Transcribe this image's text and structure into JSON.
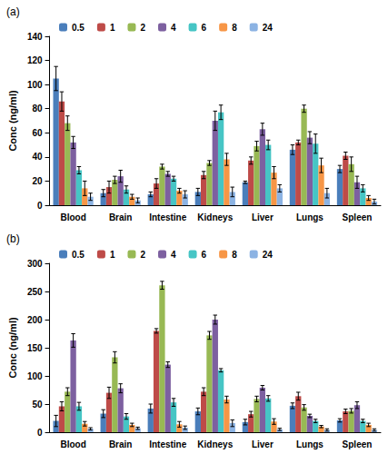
{
  "chart_data": [
    {
      "type": "bar",
      "title": "(a)",
      "y_label": "Conc (ng/ml)",
      "categories": [
        "Blood",
        "Brain",
        "Intestine",
        "Kidneys",
        "Liver",
        "Lungs",
        "Spleen"
      ],
      "ylim": [
        0,
        140
      ],
      "yticks": [
        0,
        20,
        40,
        60,
        80,
        100,
        120,
        140
      ],
      "grid": false,
      "legend": "top",
      "series": [
        {
          "name": "0.5",
          "color": "#4a7ebb",
          "values": [
            105,
            10,
            9,
            11,
            19,
            46,
            30
          ],
          "errors": [
            10,
            3,
            2,
            3,
            1,
            4,
            3
          ]
        },
        {
          "name": "1",
          "color": "#be4b48",
          "values": [
            86,
            15,
            18,
            25,
            37,
            52,
            41
          ],
          "errors": [
            8,
            5,
            4,
            3,
            3,
            2,
            3
          ]
        },
        {
          "name": "2",
          "color": "#98b954",
          "values": [
            68,
            21,
            32,
            35,
            49,
            80,
            34
          ],
          "errors": [
            6,
            3,
            2,
            2,
            4,
            3,
            6
          ]
        },
        {
          "name": "4",
          "color": "#7d60a0",
          "values": [
            52,
            24,
            26,
            70,
            63,
            56,
            19
          ],
          "errors": [
            5,
            5,
            2,
            8,
            5,
            5,
            5
          ]
        },
        {
          "name": "6",
          "color": "#46c5c5",
          "values": [
            29,
            13,
            22,
            77,
            50,
            51,
            14
          ],
          "errors": [
            3,
            3,
            2,
            6,
            4,
            8,
            3
          ]
        },
        {
          "name": "8",
          "color": "#f79646",
          "values": [
            14,
            7,
            12,
            38,
            27,
            33,
            6
          ],
          "errors": [
            6,
            2,
            2,
            5,
            5,
            6,
            2
          ]
        },
        {
          "name": "24",
          "color": "#8cb3e3",
          "values": [
            7,
            4,
            9,
            11,
            14,
            10,
            3
          ],
          "errors": [
            3,
            2,
            3,
            4,
            3,
            4,
            2
          ]
        }
      ]
    },
    {
      "type": "bar",
      "title": "(b)",
      "y_label": "Conc (ng/ml)",
      "categories": [
        "Blood",
        "Brain",
        "Intestine",
        "Kidneys",
        "Liver",
        "Lungs",
        "Spleen"
      ],
      "ylim": [
        0,
        300
      ],
      "yticks": [
        0,
        50,
        100,
        150,
        200,
        250,
        300
      ],
      "grid": false,
      "legend": "top",
      "series": [
        {
          "name": "0.5",
          "color": "#4a7ebb",
          "values": [
            20,
            33,
            42,
            37,
            18,
            47,
            21
          ],
          "errors": [
            10,
            7,
            8,
            6,
            5,
            5,
            3
          ]
        },
        {
          "name": "1",
          "color": "#be4b48",
          "values": [
            46,
            70,
            180,
            72,
            32,
            64,
            37
          ],
          "errors": [
            8,
            10,
            4,
            7,
            5,
            7,
            4
          ]
        },
        {
          "name": "2",
          "color": "#98b954",
          "values": [
            72,
            133,
            261,
            172,
            59,
            44,
            38
          ],
          "errors": [
            7,
            10,
            7,
            7,
            5,
            5,
            4
          ]
        },
        {
          "name": "4",
          "color": "#7d60a0",
          "values": [
            163,
            78,
            120,
            200,
            79,
            29,
            48
          ],
          "errors": [
            12,
            8,
            5,
            8,
            4,
            3,
            6
          ]
        },
        {
          "name": "6",
          "color": "#46c5c5",
          "values": [
            46,
            28,
            53,
            110,
            60,
            20,
            20
          ],
          "errors": [
            7,
            5,
            7,
            3,
            5,
            3,
            3
          ]
        },
        {
          "name": "8",
          "color": "#f79646",
          "values": [
            15,
            13,
            14,
            58,
            19,
            10,
            13
          ],
          "errors": [
            4,
            3,
            5,
            6,
            5,
            2,
            3
          ]
        },
        {
          "name": "24",
          "color": "#8cb3e3",
          "values": [
            6,
            7,
            8,
            16,
            5,
            4,
            4
          ],
          "errors": [
            2,
            2,
            3,
            6,
            2,
            2,
            2
          ]
        }
      ]
    }
  ]
}
